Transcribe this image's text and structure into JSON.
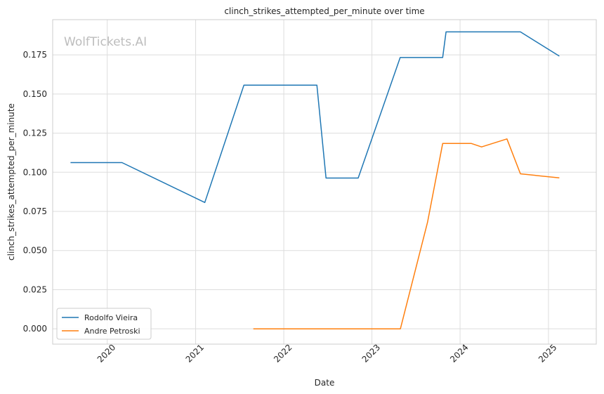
{
  "chart_data": {
    "type": "line",
    "title": "clinch_strikes_attempted_per_minute over time",
    "xlabel": "Date",
    "ylabel": "clinch_strikes_attempted_per_minute",
    "watermark": "WolfTickets.AI",
    "x_ticks": [
      "2020",
      "2021",
      "2022",
      "2023",
      "2024",
      "2025"
    ],
    "y_ticks": [
      "0.000",
      "0.025",
      "0.050",
      "0.075",
      "0.100",
      "0.125",
      "0.150",
      "0.175"
    ],
    "xlim": [
      "2019-05-20",
      "2025-07-18"
    ],
    "ylim": [
      -0.0098,
      0.1975
    ],
    "grid": true,
    "legend_position": "lower-left",
    "series": [
      {
        "name": "Rodolfo Vieira",
        "color": "#1f77b4",
        "points": [
          [
            "2019-08-02",
            0.1062
          ],
          [
            "2020-03-02",
            0.1062
          ],
          [
            "2021-02-08",
            0.0807
          ],
          [
            "2021-07-20",
            0.1557
          ],
          [
            "2022-05-18",
            0.1557
          ],
          [
            "2022-06-25",
            0.0963
          ],
          [
            "2022-11-05",
            0.0963
          ],
          [
            "2023-04-28",
            0.1733
          ],
          [
            "2023-10-21",
            0.1733
          ],
          [
            "2023-11-04",
            0.1897
          ],
          [
            "2024-09-07",
            0.1897
          ],
          [
            "2025-02-15",
            0.1742
          ]
        ]
      },
      {
        "name": "Andre Petroski",
        "color": "#ff7f0e",
        "points": [
          [
            "2021-08-28",
            0.0
          ],
          [
            "2023-04-29",
            0.0
          ],
          [
            "2023-08-19",
            0.068
          ],
          [
            "2023-10-21",
            0.1184
          ],
          [
            "2024-02-17",
            0.1184
          ],
          [
            "2024-03-30",
            0.1162
          ],
          [
            "2024-07-13",
            0.1213
          ],
          [
            "2024-09-07",
            0.099
          ],
          [
            "2025-02-15",
            0.0964
          ]
        ]
      }
    ]
  }
}
